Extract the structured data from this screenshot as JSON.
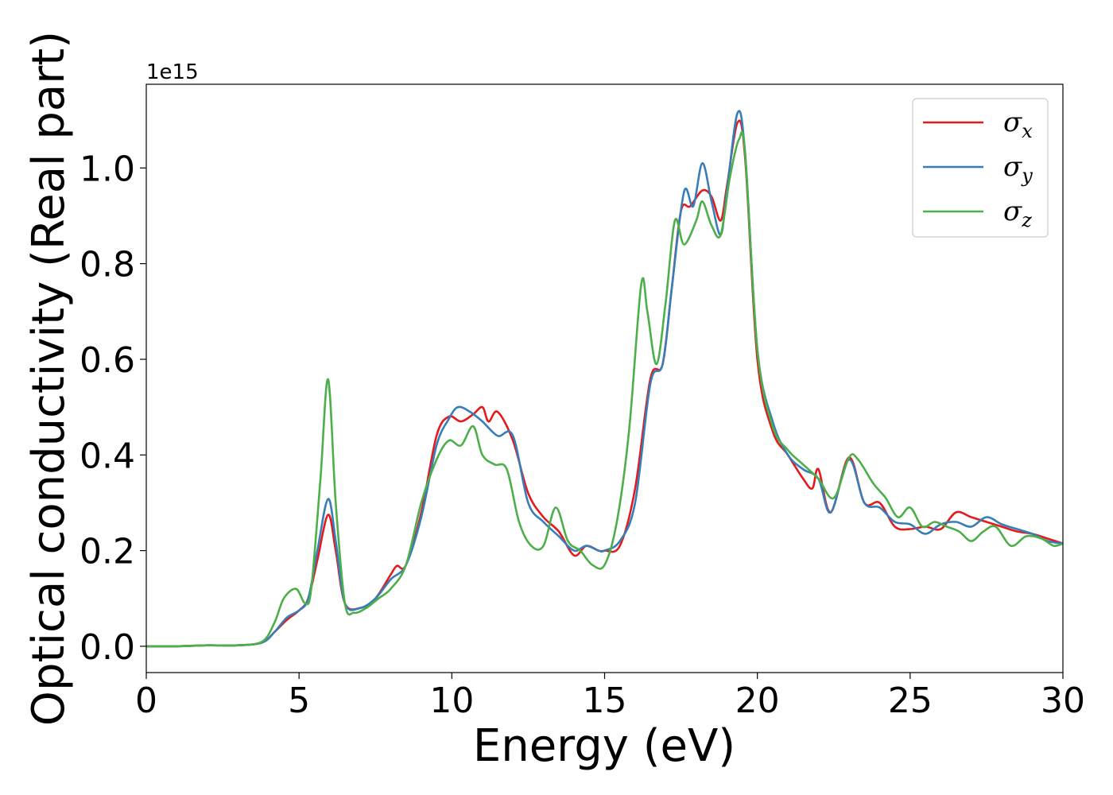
{
  "chart_data": {
    "type": "line",
    "xlabel": "Energy (eV)",
    "ylabel": "Optical conductivity (Real part)",
    "y_offset_label": "1e15",
    "xlim": [
      0,
      30
    ],
    "ylim": [
      -0.055,
      1.175
    ],
    "x_ticks": [
      0,
      5,
      10,
      15,
      20,
      25,
      30
    ],
    "x_tick_labels": [
      "0",
      "5",
      "10",
      "15",
      "20",
      "25",
      "30"
    ],
    "y_ticks": [
      0.0,
      0.2,
      0.4,
      0.6,
      0.8,
      1.0
    ],
    "y_tick_labels": [
      "0.0",
      "0.2",
      "0.4",
      "0.6",
      "0.8",
      "1.0"
    ],
    "grid": false,
    "legend_position": "top-right",
    "series": [
      {
        "name": "σx",
        "base": "σ",
        "sub": "x",
        "color": "#e41a1c",
        "points": [
          [
            0,
            0
          ],
          [
            1,
            0
          ],
          [
            2,
            0.002
          ],
          [
            3,
            0.002
          ],
          [
            3.8,
            0.008
          ],
          [
            4.2,
            0.03
          ],
          [
            4.6,
            0.055
          ],
          [
            5,
            0.075
          ],
          [
            5.3,
            0.1
          ],
          [
            5.6,
            0.18
          ],
          [
            5.95,
            0.275
          ],
          [
            6.2,
            0.2
          ],
          [
            6.5,
            0.09
          ],
          [
            7,
            0.08
          ],
          [
            7.5,
            0.1
          ],
          [
            8,
            0.15
          ],
          [
            8.2,
            0.168
          ],
          [
            8.5,
            0.17
          ],
          [
            9,
            0.28
          ],
          [
            9.5,
            0.44
          ],
          [
            9.9,
            0.48
          ],
          [
            10.3,
            0.47
          ],
          [
            10.7,
            0.485
          ],
          [
            11,
            0.5
          ],
          [
            11.2,
            0.47
          ],
          [
            11.5,
            0.49
          ],
          [
            12,
            0.43
          ],
          [
            12.5,
            0.32
          ],
          [
            13,
            0.27
          ],
          [
            13.5,
            0.24
          ],
          [
            14,
            0.19
          ],
          [
            14.4,
            0.21
          ],
          [
            14.8,
            0.2
          ],
          [
            15,
            0.2
          ],
          [
            15.5,
            0.21
          ],
          [
            16,
            0.33
          ],
          [
            16.5,
            0.56
          ],
          [
            16.9,
            0.59
          ],
          [
            17.2,
            0.75
          ],
          [
            17.5,
            0.91
          ],
          [
            17.8,
            0.92
          ],
          [
            18.2,
            0.953
          ],
          [
            18.5,
            0.94
          ],
          [
            18.8,
            0.89
          ],
          [
            19,
            0.96
          ],
          [
            19.35,
            1.095
          ],
          [
            19.6,
            1.02
          ],
          [
            20,
            0.6
          ],
          [
            20.5,
            0.45
          ],
          [
            21,
            0.4
          ],
          [
            21.5,
            0.35
          ],
          [
            21.8,
            0.33
          ],
          [
            22,
            0.37
          ],
          [
            22.4,
            0.28
          ],
          [
            23,
            0.395
          ],
          [
            23.5,
            0.3
          ],
          [
            24,
            0.3
          ],
          [
            24.5,
            0.25
          ],
          [
            25,
            0.245
          ],
          [
            25.5,
            0.25
          ],
          [
            26,
            0.245
          ],
          [
            26.5,
            0.28
          ],
          [
            27,
            0.27
          ],
          [
            27.5,
            0.26
          ],
          [
            28,
            0.25
          ],
          [
            28.5,
            0.24
          ],
          [
            29,
            0.235
          ],
          [
            29.5,
            0.225
          ],
          [
            30,
            0.215
          ]
        ]
      },
      {
        "name": "σy",
        "base": "σ",
        "sub": "y",
        "color": "#377eb8",
        "points": [
          [
            0,
            0
          ],
          [
            1,
            0
          ],
          [
            2,
            0.002
          ],
          [
            3,
            0.002
          ],
          [
            3.8,
            0.008
          ],
          [
            4.2,
            0.03
          ],
          [
            4.6,
            0.06
          ],
          [
            5,
            0.075
          ],
          [
            5.3,
            0.1
          ],
          [
            5.6,
            0.2
          ],
          [
            5.95,
            0.308
          ],
          [
            6.2,
            0.22
          ],
          [
            6.5,
            0.09
          ],
          [
            7,
            0.08
          ],
          [
            7.5,
            0.1
          ],
          [
            8,
            0.14
          ],
          [
            8.5,
            0.17
          ],
          [
            9,
            0.27
          ],
          [
            9.5,
            0.42
          ],
          [
            9.9,
            0.475
          ],
          [
            10.2,
            0.5
          ],
          [
            10.6,
            0.49
          ],
          [
            11,
            0.47
          ],
          [
            11.5,
            0.44
          ],
          [
            12,
            0.44
          ],
          [
            12.5,
            0.3
          ],
          [
            13,
            0.26
          ],
          [
            13.5,
            0.23
          ],
          [
            14,
            0.2
          ],
          [
            14.4,
            0.21
          ],
          [
            14.8,
            0.2
          ],
          [
            15,
            0.2
          ],
          [
            15.5,
            0.22
          ],
          [
            16,
            0.3
          ],
          [
            16.5,
            0.55
          ],
          [
            16.9,
            0.59
          ],
          [
            17.2,
            0.75
          ],
          [
            17.6,
            0.95
          ],
          [
            17.9,
            0.92
          ],
          [
            18.2,
            1.01
          ],
          [
            18.5,
            0.93
          ],
          [
            18.8,
            0.86
          ],
          [
            19,
            0.95
          ],
          [
            19.35,
            1.115
          ],
          [
            19.6,
            1.03
          ],
          [
            20,
            0.62
          ],
          [
            20.5,
            0.47
          ],
          [
            21,
            0.4
          ],
          [
            21.5,
            0.37
          ],
          [
            22,
            0.35
          ],
          [
            22.4,
            0.28
          ],
          [
            23,
            0.39
          ],
          [
            23.5,
            0.3
          ],
          [
            24,
            0.29
          ],
          [
            24.5,
            0.26
          ],
          [
            25,
            0.255
          ],
          [
            25.5,
            0.235
          ],
          [
            26,
            0.255
          ],
          [
            26.5,
            0.26
          ],
          [
            27,
            0.25
          ],
          [
            27.5,
            0.27
          ],
          [
            28,
            0.255
          ],
          [
            28.5,
            0.245
          ],
          [
            29,
            0.235
          ],
          [
            29.5,
            0.22
          ],
          [
            30,
            0.215
          ]
        ]
      },
      {
        "name": "σz",
        "base": "σ",
        "sub": "z",
        "color": "#4daf4a",
        "points": [
          [
            0,
            0
          ],
          [
            1,
            0
          ],
          [
            2,
            0.002
          ],
          [
            3,
            0.002
          ],
          [
            3.8,
            0.01
          ],
          [
            4.2,
            0.05
          ],
          [
            4.5,
            0.1
          ],
          [
            4.9,
            0.12
          ],
          [
            5.2,
            0.09
          ],
          [
            5.4,
            0.12
          ],
          [
            5.7,
            0.35
          ],
          [
            5.95,
            0.558
          ],
          [
            6.2,
            0.3
          ],
          [
            6.5,
            0.09
          ],
          [
            6.8,
            0.07
          ],
          [
            7.2,
            0.08
          ],
          [
            7.6,
            0.1
          ],
          [
            8,
            0.12
          ],
          [
            8.5,
            0.17
          ],
          [
            9,
            0.3
          ],
          [
            9.5,
            0.39
          ],
          [
            9.9,
            0.43
          ],
          [
            10.3,
            0.42
          ],
          [
            10.7,
            0.46
          ],
          [
            11,
            0.4
          ],
          [
            11.4,
            0.38
          ],
          [
            11.8,
            0.37
          ],
          [
            12.2,
            0.26
          ],
          [
            12.6,
            0.21
          ],
          [
            13,
            0.21
          ],
          [
            13.4,
            0.29
          ],
          [
            13.8,
            0.22
          ],
          [
            14.2,
            0.2
          ],
          [
            14.6,
            0.17
          ],
          [
            15,
            0.17
          ],
          [
            15.4,
            0.26
          ],
          [
            15.8,
            0.45
          ],
          [
            16.2,
            0.757
          ],
          [
            16.4,
            0.7
          ],
          [
            16.7,
            0.59
          ],
          [
            17,
            0.72
          ],
          [
            17.3,
            0.89
          ],
          [
            17.6,
            0.84
          ],
          [
            18,
            0.89
          ],
          [
            18.2,
            0.93
          ],
          [
            18.5,
            0.88
          ],
          [
            18.8,
            0.86
          ],
          [
            19.1,
            0.98
          ],
          [
            19.4,
            1.06
          ],
          [
            19.6,
            1.03
          ],
          [
            20,
            0.62
          ],
          [
            20.5,
            0.46
          ],
          [
            21,
            0.41
          ],
          [
            21.5,
            0.38
          ],
          [
            22,
            0.35
          ],
          [
            22.5,
            0.31
          ],
          [
            23,
            0.395
          ],
          [
            23.3,
            0.39
          ],
          [
            23.8,
            0.34
          ],
          [
            24.2,
            0.31
          ],
          [
            24.6,
            0.27
          ],
          [
            25,
            0.29
          ],
          [
            25.4,
            0.25
          ],
          [
            25.8,
            0.26
          ],
          [
            26.2,
            0.25
          ],
          [
            26.6,
            0.24
          ],
          [
            27,
            0.22
          ],
          [
            27.4,
            0.24
          ],
          [
            27.8,
            0.25
          ],
          [
            28.3,
            0.21
          ],
          [
            28.8,
            0.23
          ],
          [
            29.3,
            0.225
          ],
          [
            29.7,
            0.21
          ],
          [
            30,
            0.215
          ]
        ]
      }
    ]
  }
}
